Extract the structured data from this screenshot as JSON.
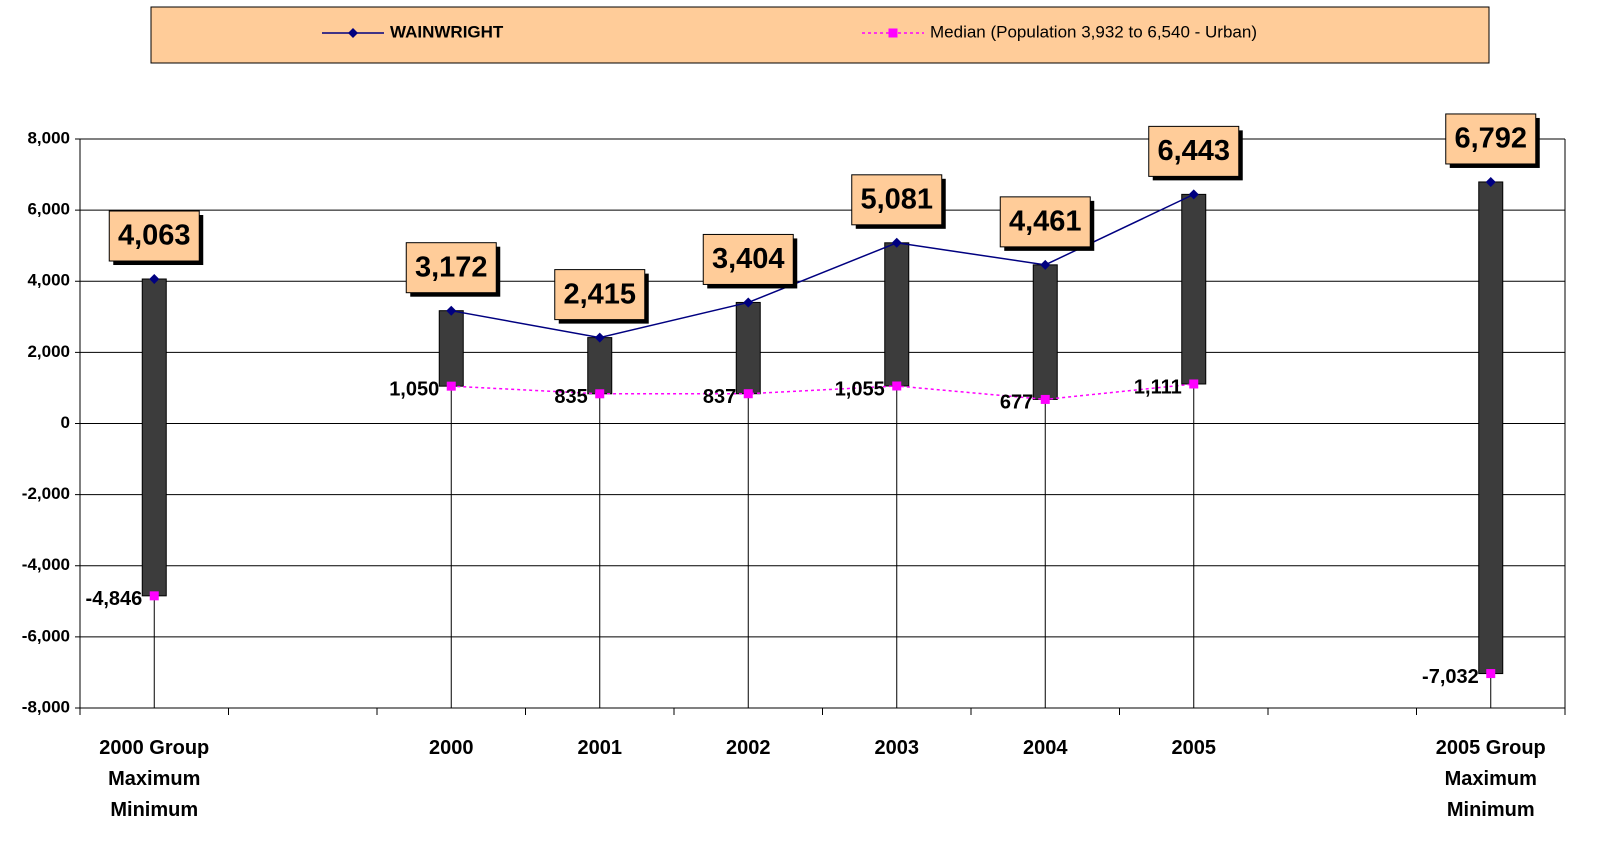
{
  "chart_data": {
    "type": "line",
    "categories": [
      "2000 Group\nMaximum\nMinimum",
      null,
      "2000",
      "2001",
      "2002",
      "2003",
      "2004",
      "2005",
      null,
      "2005 Group\nMaximum\nMinimum"
    ],
    "series": [
      {
        "name": "WAINWRIGHT",
        "color": "#000080",
        "marker": "diamond",
        "dash": false,
        "values": [
          4063,
          null,
          3172,
          2415,
          3404,
          5081,
          4461,
          6443,
          null,
          6792
        ],
        "value_labels": [
          "4,063",
          null,
          "3,172",
          "2,415",
          "3,404",
          "5,081",
          "4,461",
          "6,443",
          null,
          "6,792"
        ]
      },
      {
        "name": "Median (Population 3,932 to 6,540 - Urban)",
        "color": "#FF00FF",
        "marker": "square",
        "dash": true,
        "values": [
          -4846,
          null,
          1050,
          835,
          837,
          1055,
          677,
          1111,
          null,
          -7032
        ],
        "value_labels": [
          "-4,846",
          null,
          "1,050",
          "835",
          "837",
          "1,055",
          "677",
          "1,111",
          null,
          "-7,032"
        ]
      }
    ],
    "ylim": [
      -8000,
      8000
    ],
    "yticks": [
      {
        "value": -8000,
        "label": "-8,000"
      },
      {
        "value": -6000,
        "label": "-6,000"
      },
      {
        "value": -4000,
        "label": "-4,000"
      },
      {
        "value": -2000,
        "label": "-2,000"
      },
      0,
      {
        "value": 2000,
        "label": "2,000"
      },
      {
        "value": 4000,
        "label": "4,000"
      },
      {
        "value": 6000,
        "label": "6,000"
      },
      {
        "value": 8000,
        "label": "8,000"
      }
    ],
    "grid": true,
    "legend": "top"
  }
}
